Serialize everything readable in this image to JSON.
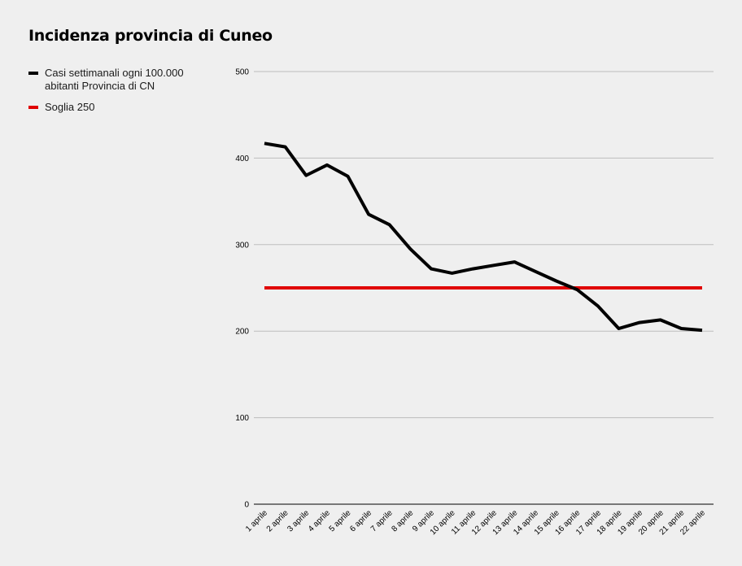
{
  "chart_data": {
    "type": "line",
    "title": "Incidenza provincia di Cuneo",
    "categories": [
      "1 aprile",
      "2 aprile",
      "3 aprile",
      "4 aprile",
      "5 aprile",
      "6 aprile",
      "7 aprile",
      "8 aprile",
      "9 aprile",
      "10 aprile",
      "11 aprile",
      "12 aprile",
      "13 aprile",
      "14 aprile",
      "15 aprile",
      "16 aprile",
      "17 aprile",
      "18 aprile",
      "19 aprile",
      "20 aprile",
      "21 aprile",
      "22 aprile"
    ],
    "series": [
      {
        "name": "Casi settimanali ogni 100.000 abitanti Provincia di CN",
        "color": "#000000",
        "values": [
          417,
          413,
          380,
          392,
          379,
          335,
          323,
          295,
          272,
          267,
          272,
          276,
          280,
          269,
          258,
          248,
          229,
          203,
          210,
          213,
          203,
          201
        ]
      },
      {
        "name": "Soglia 250",
        "color": "#e00000",
        "values": [
          250,
          250,
          250,
          250,
          250,
          250,
          250,
          250,
          250,
          250,
          250,
          250,
          250,
          250,
          250,
          250,
          250,
          250,
          250,
          250,
          250,
          250
        ]
      }
    ],
    "ylim": [
      0,
      500
    ],
    "yticks": [
      0,
      100,
      200,
      300,
      400,
      500
    ],
    "grid": true,
    "legend_position": "top-left"
  }
}
